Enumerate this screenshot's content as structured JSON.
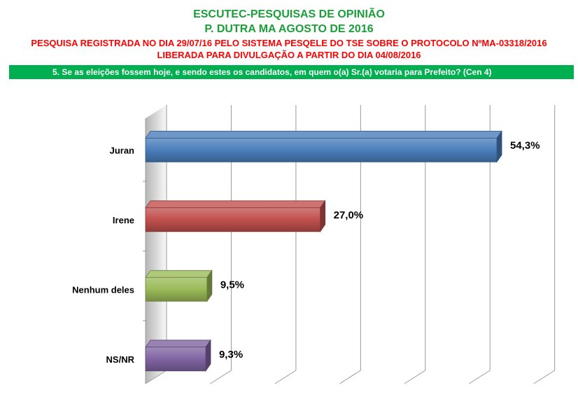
{
  "header": {
    "title_line1": "ESCUTEC-PESQUISAS DE OPINIÃO",
    "title_line2": "P. DUTRA MA AGOSTO DE 2016",
    "notice_line1": "PESQUISA REGISTRADA NO DIA 29/07/16 PELO SISTEMA PESQELE DO TSE SOBRE O PROTOCOLO NºMA-03318/2016",
    "notice_line2": "LIBERADA PARA DIVULGAÇÃO A PARTIR DO DIA 04/08/2016",
    "question": "5. Se as eleições fossem hoje, e sendo estes os candidatos, em quem o(a) Sr.(a) votaria para Prefeito? (Cen 4)"
  },
  "colors": {
    "title": "#1a9e3a",
    "notice": "#ff0000",
    "question_bg": "#00b050"
  },
  "chart_data": {
    "type": "bar",
    "orientation": "horizontal",
    "style": "3d",
    "categories": [
      "Juran",
      "Irene",
      "Nenhum deles",
      "NS/NR"
    ],
    "values": [
      54.3,
      27.0,
      9.5,
      9.3
    ],
    "value_labels": [
      "54,3%",
      "27,0%",
      "9,5%",
      "9,3%"
    ],
    "colors": [
      "#4a7ebb",
      "#c0504d",
      "#9bbb59",
      "#8064a2"
    ],
    "xlim": [
      0,
      60
    ],
    "grid": true
  }
}
